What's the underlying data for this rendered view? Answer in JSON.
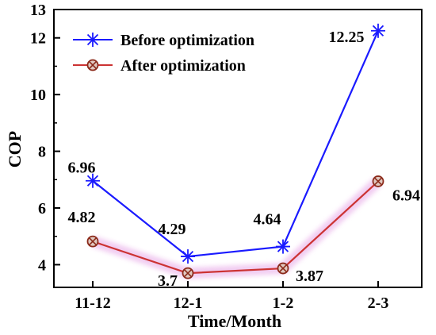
{
  "chart_data": {
    "type": "line",
    "categories": [
      "11-12",
      "12-1",
      "1-2",
      "2-3"
    ],
    "xlabel": "Time/Month",
    "ylabel": "COP",
    "ylim": [
      3.2,
      13
    ],
    "yticks": [
      "4",
      "6",
      "8",
      "10",
      "12",
      "13"
    ],
    "ytick_values": [
      4,
      6,
      8,
      10,
      12,
      13
    ],
    "grid": false,
    "legend_position": "top-left",
    "series": [
      {
        "name": "Before optimization",
        "values": [
          6.96,
          4.29,
          4.64,
          12.25
        ],
        "labels": [
          "6.96",
          "4.29",
          "4.64",
          "12.25"
        ],
        "color": "#1a1aff",
        "marker": "asterisk"
      },
      {
        "name": "After optimization",
        "values": [
          4.82,
          3.7,
          3.87,
          6.94
        ],
        "labels": [
          "4.82",
          "3.7",
          "3.87",
          "6.94"
        ],
        "color": "#cc3333",
        "marker": "circle-x"
      }
    ]
  }
}
